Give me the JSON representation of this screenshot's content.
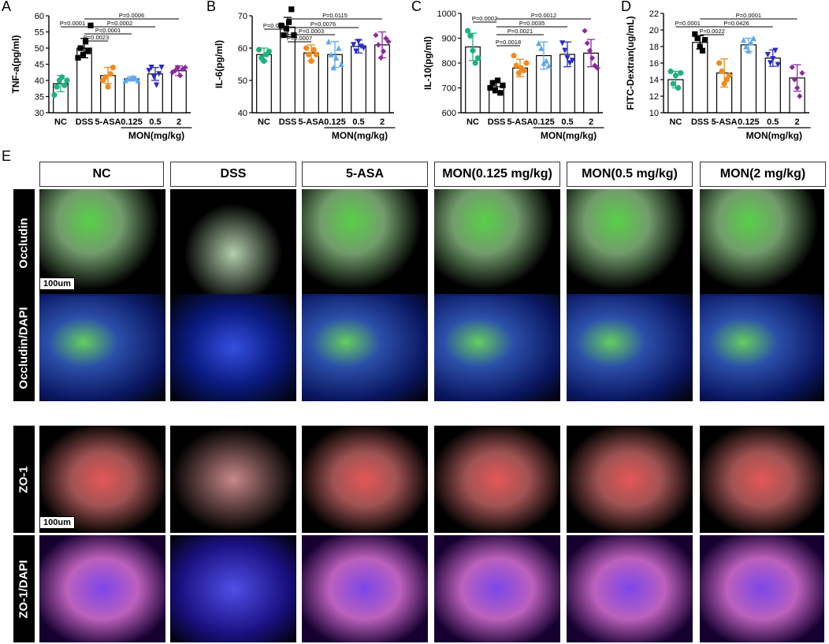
{
  "panel_labels": [
    "A",
    "B",
    "C",
    "D",
    "E"
  ],
  "groups": {
    "nc": "NC",
    "dss": "DSS",
    "asa": "5-ASA",
    "mon_doses": [
      "0.125",
      "0.5",
      "2"
    ],
    "mon_label": "MON(mg/kg)"
  },
  "chart_data": [
    {
      "type": "bar",
      "panel": "A",
      "categories": [
        "NC",
        "DSS",
        "5-ASA",
        "0.125",
        "0.5",
        "2"
      ],
      "values": [
        39,
        50,
        41.5,
        40.5,
        42,
        43
      ],
      "error": [
        2.5,
        3,
        2.5,
        0.7,
        2,
        1.5
      ],
      "points": [
        [
          35.5,
          38,
          40,
          41,
          38.5,
          40
        ],
        [
          47,
          50,
          48,
          52,
          49,
          57
        ],
        [
          40,
          41,
          38,
          42,
          44
        ],
        [
          40,
          40.5,
          40.5,
          41,
          40.8,
          40
        ],
        [
          43,
          44,
          41,
          38.5,
          42,
          44
        ],
        [
          42.5,
          43,
          44,
          41.5,
          43.5,
          44
        ]
      ],
      "ylabel": "TNF-a(pg/ml)",
      "ylim": [
        30,
        60
      ],
      "yticks": [
        30,
        35,
        40,
        45,
        50,
        55,
        60
      ],
      "comparisons": [
        "P=0.0001",
        "P=0.0006",
        "P=0.0002",
        "P=0.0001",
        "P=0.0023"
      ]
    },
    {
      "type": "bar",
      "panel": "B",
      "categories": [
        "NC",
        "DSS",
        "5-ASA",
        "0.125",
        "0.5",
        "2"
      ],
      "values": [
        58,
        66.5,
        58.5,
        58,
        60.5,
        61
      ],
      "error": [
        2,
        3,
        2.5,
        4,
        2,
        4
      ],
      "points": [
        [
          59.5,
          57,
          56,
          58,
          59
        ],
        [
          67,
          64,
          66,
          68,
          72,
          64
        ],
        [
          60,
          58,
          56,
          59.5,
          58
        ],
        [
          62,
          58,
          54,
          57,
          60,
          55
        ],
        [
          61,
          59,
          62,
          60.5,
          60
        ],
        [
          64,
          61,
          57,
          59,
          63,
          62
        ]
      ],
      "ylabel": "IL-6(pg/ml)",
      "ylim": [
        40,
        70
      ],
      "yticks": [
        40,
        50,
        60,
        70
      ],
      "comparisons": [
        "P=0.0004",
        "P=0.0115",
        "P=0.0076",
        "P=0.0003",
        "P=0.0007"
      ]
    },
    {
      "type": "bar",
      "panel": "C",
      "categories": [
        "NC",
        "DSS",
        "5-ASA",
        "0.125",
        "0.5",
        "2"
      ],
      "values": [
        865,
        705,
        780,
        830,
        835,
        840
      ],
      "error": [
        55,
        25,
        35,
        55,
        50,
        55
      ],
      "points": [
        [
          930,
          910,
          850,
          800,
          820
        ],
        [
          700,
          720,
          690,
          730,
          680,
          710
        ],
        [
          830,
          790,
          760,
          780,
          770,
          800
        ],
        [
          880,
          860,
          800,
          810,
          790
        ],
        [
          880,
          850,
          820,
          800,
          810
        ],
        [
          930,
          880,
          850,
          820,
          790,
          780
        ]
      ],
      "ylabel": "IL-10(pg/ml)",
      "ylim": [
        600,
        1000
      ],
      "yticks": [
        600,
        700,
        800,
        900,
        1000
      ],
      "comparisons": [
        "P=0.0002",
        "P=0.0012",
        "P=0.0035",
        "P=0.0021",
        "P=0.0018"
      ]
    },
    {
      "type": "bar",
      "panel": "D",
      "categories": [
        "NC",
        "DSS",
        "5-ASA",
        "0.125",
        "0.5",
        "2"
      ],
      "values": [
        14,
        18.5,
        14.8,
        18.2,
        16.6,
        14.2
      ],
      "error": [
        1,
        0.8,
        1.7,
        0.8,
        1,
        1.6
      ],
      "points": [
        [
          15,
          13.5,
          14.5,
          13,
          14.8
        ],
        [
          19.5,
          19,
          18,
          17.5,
          18.8
        ],
        [
          16,
          15,
          13.5,
          14,
          14.5
        ],
        [
          18.8,
          18,
          17.5,
          18.5,
          19
        ],
        [
          17,
          16,
          16.5,
          17.5,
          15.8
        ],
        [
          15.5,
          14,
          13,
          12,
          14.8
        ]
      ],
      "ylabel": "FITC-Dextran(ug/mL)",
      "ylim": [
        10,
        22
      ],
      "yticks": [
        10,
        12,
        14,
        16,
        18,
        20,
        22
      ],
      "comparisons": [
        "P=0.0001",
        "P=0.0001",
        "P=0.0426",
        "P=0.0022"
      ]
    }
  ],
  "colors": {
    "NC": "#22b07d",
    "DSS": "#000000",
    "5-ASA": "#f08a1d",
    "0.125": "#5fa8e8",
    "0.5": "#2a2ac8",
    "2": "#8a2aa0"
  },
  "panel_e": {
    "column_headers": [
      "NC",
      "DSS",
      "5-ASA",
      "MON(0.125 mg/kg)",
      "MON(0.5 mg/kg)",
      "MON(2 mg/kg)"
    ],
    "row_labels": [
      "Occludin",
      "Occludin/DAPI",
      "ZO-1",
      "ZO-1/DAPI"
    ],
    "scale_bar": "100um"
  }
}
